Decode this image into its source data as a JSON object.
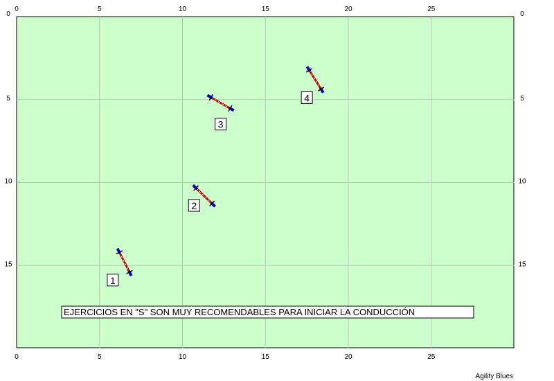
{
  "field": {
    "width_m": 30,
    "height_m": 20,
    "grid_step_m": 5,
    "background_color": "#ccffcc",
    "grid_color": "#c0c0c0"
  },
  "axis": {
    "x_ticks": [
      "0",
      "5",
      "10",
      "15",
      "20",
      "25"
    ],
    "y_ticks": [
      "0",
      "5",
      "10",
      "15"
    ]
  },
  "obstacles": [
    {
      "number": "1",
      "type": "jump",
      "center": [
        6.5,
        14.8
      ],
      "angle_deg": 63,
      "label_pos": [
        5.8,
        15.9
      ]
    },
    {
      "number": "2",
      "type": "jump",
      "center": [
        11.3,
        10.8
      ],
      "angle_deg": 44,
      "label_pos": [
        10.7,
        11.4
      ]
    },
    {
      "number": "3",
      "type": "jump",
      "center": [
        12.3,
        5.2
      ],
      "angle_deg": 30,
      "label_pos": [
        12.3,
        6.5
      ]
    },
    {
      "number": "4",
      "type": "jump",
      "center": [
        18.0,
        3.8
      ],
      "angle_deg": 58,
      "label_pos": [
        17.5,
        4.9
      ]
    }
  ],
  "note": {
    "text": "EJERCICIOS EN \"S\" SON MUY RECOMENDABLES PARA INICIAR LA CONDUCCIÓN"
  },
  "credit": "Agility Blues",
  "colors": {
    "pole": "#cc0000",
    "wing": "#0000cc",
    "pole_stripe": "#ffffff"
  }
}
